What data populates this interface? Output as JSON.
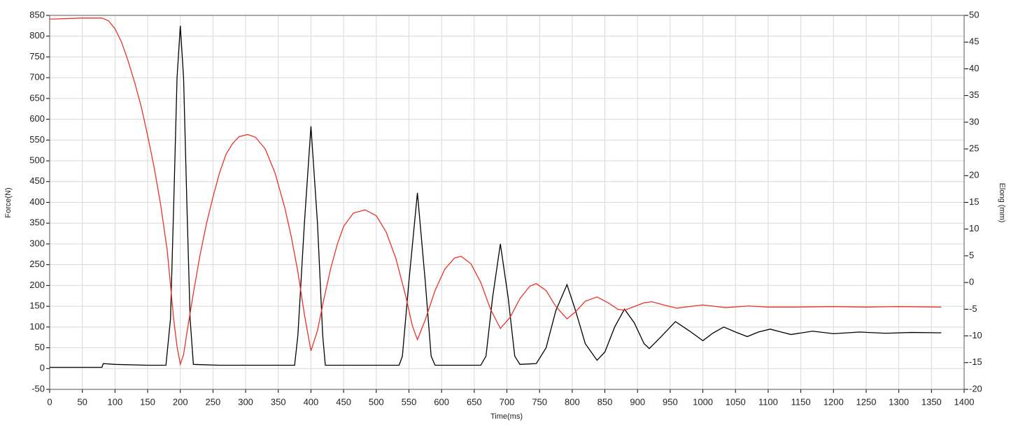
{
  "chart_data": {
    "type": "line",
    "xlabel": "Time(ms)",
    "ylabel": "Force(N)",
    "y2label": "Elong (mm)",
    "xlim": [
      0,
      1400
    ],
    "xticks": [
      0,
      50,
      100,
      150,
      200,
      250,
      300,
      350,
      400,
      450,
      500,
      550,
      600,
      650,
      700,
      750,
      800,
      850,
      900,
      950,
      1000,
      1050,
      1100,
      1150,
      1200,
      1250,
      1300,
      1350,
      1400
    ],
    "ylim": [
      -50,
      850
    ],
    "yticks": [
      -50,
      0,
      50,
      100,
      150,
      200,
      250,
      300,
      350,
      400,
      450,
      500,
      550,
      600,
      650,
      700,
      750,
      800,
      850
    ],
    "y2lim": [
      -20,
      50
    ],
    "y2ticks": [
      -20,
      -15,
      -10,
      -5,
      0,
      5,
      10,
      15,
      20,
      25,
      30,
      35,
      40,
      45,
      50
    ],
    "grid": true,
    "series": [
      {
        "color": "#000000",
        "x": [
          0,
          80,
          82,
          100,
          150,
          178,
          185,
          190,
          195,
          200,
          205,
          210,
          215,
          220,
          260,
          300,
          375,
          380,
          390,
          400,
          410,
          418,
          422,
          535,
          540,
          550,
          563,
          575,
          584,
          590,
          660,
          668,
          678,
          690,
          702,
          712,
          720,
          745,
          760,
          775,
          792,
          805,
          820,
          838,
          850,
          865,
          880,
          895,
          910,
          918,
          935,
          958,
          980,
          1000,
          1015,
          1032,
          1050,
          1068,
          1085,
          1103,
          1120,
          1135,
          1168,
          1200,
          1240,
          1280,
          1320,
          1365
        ],
        "values": [
          3,
          3,
          12,
          10,
          8,
          8,
          120,
          400,
          700,
          825,
          700,
          400,
          120,
          10,
          8,
          8,
          8,
          80,
          350,
          583,
          350,
          80,
          8,
          8,
          30,
          210,
          423,
          210,
          30,
          8,
          8,
          30,
          170,
          300,
          170,
          30,
          10,
          12,
          50,
          140,
          202,
          140,
          60,
          20,
          40,
          100,
          143,
          110,
          60,
          48,
          75,
          113,
          90,
          67,
          85,
          100,
          88,
          77,
          88,
          95,
          88,
          82,
          90,
          84,
          88,
          85,
          87,
          86
        ]
      },
      {
        "color": "#e8332a",
        "axis": "y2",
        "x": [
          0,
          50,
          80,
          90,
          100,
          110,
          120,
          130,
          140,
          150,
          160,
          170,
          180,
          190,
          195,
          200,
          205,
          210,
          220,
          230,
          240,
          250,
          260,
          270,
          280,
          290,
          303,
          315,
          330,
          345,
          360,
          370,
          380,
          390,
          400,
          410,
          420,
          430,
          440,
          450,
          465,
          483,
          500,
          515,
          530,
          545,
          555,
          563,
          575,
          590,
          605,
          620,
          630,
          645,
          660,
          675,
          690,
          705,
          720,
          735,
          745,
          760,
          775,
          792,
          805,
          820,
          838,
          855,
          870,
          880,
          895,
          910,
          922,
          940,
          960,
          980,
          1000,
          1020,
          1035,
          1070,
          1100,
          1140,
          1200,
          1250,
          1300,
          1365
        ],
        "values": [
          49.3,
          49.5,
          49.5,
          49,
          47.5,
          45,
          41.5,
          37.5,
          33,
          27.5,
          21.5,
          14.5,
          6,
          -7,
          -12,
          -15.3,
          -13.5,
          -9.5,
          -2,
          5,
          11,
          16,
          20.5,
          24,
          26,
          27.3,
          27.7,
          27.2,
          25,
          20.5,
          14,
          8.5,
          2,
          -6,
          -12.8,
          -9,
          -3,
          2.5,
          7,
          10.5,
          13,
          13.6,
          12.5,
          9.5,
          4.5,
          -2.5,
          -8,
          -10.7,
          -7,
          -1.5,
          2.5,
          4.6,
          4.9,
          3.5,
          0,
          -5,
          -8.6,
          -6.5,
          -3,
          -0.7,
          -0.2,
          -1.5,
          -4.5,
          -6.8,
          -5.5,
          -3.5,
          -2.7,
          -3.8,
          -5,
          -5.2,
          -4.5,
          -3.8,
          -3.6,
          -4.2,
          -4.8,
          -4.5,
          -4.2,
          -4.5,
          -4.7,
          -4.4,
          -4.6,
          -4.6,
          -4.5,
          -4.6,
          -4.5,
          -4.6
        ]
      }
    ]
  }
}
